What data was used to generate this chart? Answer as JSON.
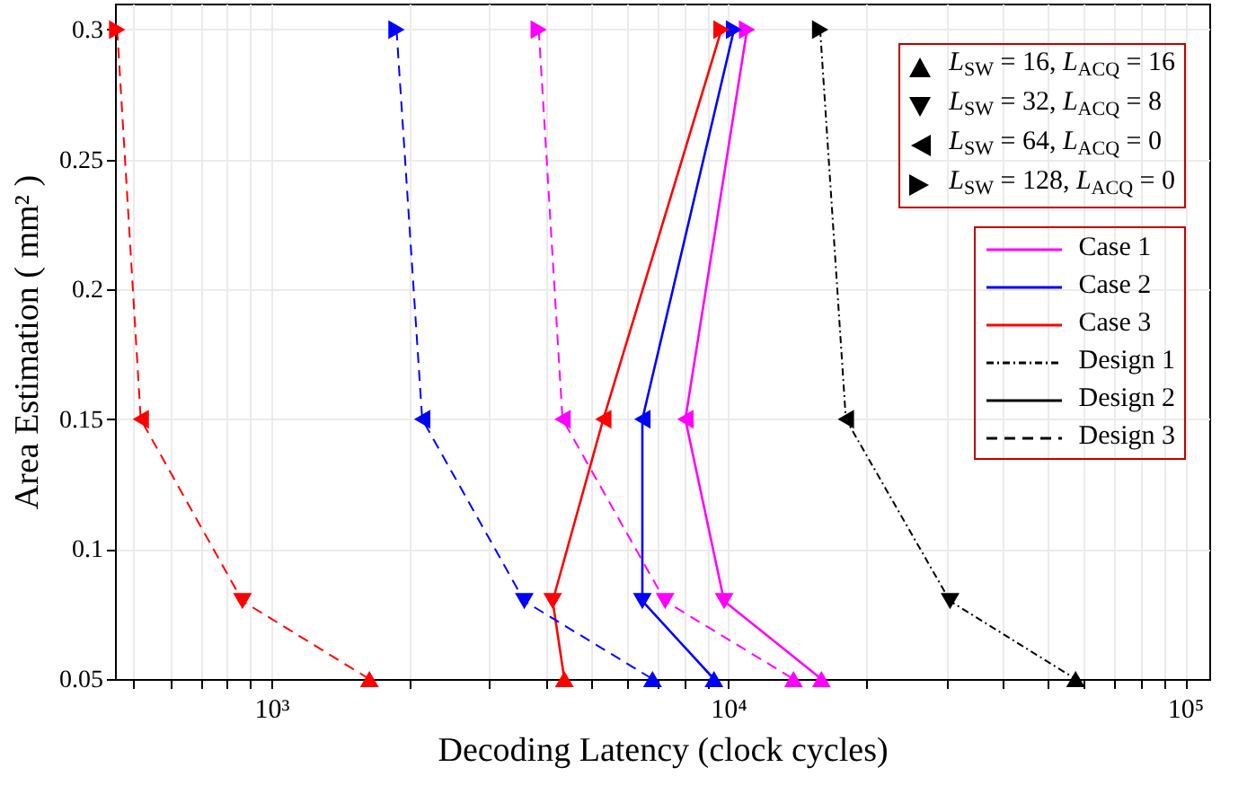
{
  "chart_data": {
    "type": "line",
    "xlabel": "Decoding Latency (clock cycles)",
    "ylabel": "Area Estimation ( mm² )",
    "log": "x",
    "grid": true,
    "legend": "top right",
    "xlim": [
      455,
      113000
    ],
    "xticks": [
      {
        "value": 500,
        "label": null
      },
      {
        "value": 600,
        "label": null
      },
      {
        "value": 700,
        "label": null
      },
      {
        "value": 800,
        "label": null
      },
      {
        "value": 900,
        "label": null
      },
      {
        "value": 1000,
        "label": "10³"
      },
      {
        "value": 2000,
        "label": null
      },
      {
        "value": 3000,
        "label": null
      },
      {
        "value": 4000,
        "label": null
      },
      {
        "value": 5000,
        "label": null
      },
      {
        "value": 6000,
        "label": null
      },
      {
        "value": 7000,
        "label": null
      },
      {
        "value": 8000,
        "label": null
      },
      {
        "value": 9000,
        "label": null
      },
      {
        "value": 10000,
        "label": "10⁴"
      },
      {
        "value": 20000,
        "label": null
      },
      {
        "value": 30000,
        "label": null
      },
      {
        "value": 40000,
        "label": null
      },
      {
        "value": 50000,
        "label": null
      },
      {
        "value": 60000,
        "label": null
      },
      {
        "value": 70000,
        "label": null
      },
      {
        "value": 80000,
        "label": null
      },
      {
        "value": 90000,
        "label": null
      },
      {
        "value": 100000,
        "label": "10⁵"
      }
    ],
    "ylim": [
      0.05,
      0.31
    ],
    "yticks": [
      0.05,
      0.1,
      0.15,
      0.2,
      0.25,
      0.3
    ],
    "series": [
      {
        "color": "#000000",
        "line_style": "dashdot",
        "marker": "none",
        "x": [
          15900,
          18100,
          30600,
          57600
        ],
        "values": [
          0.3,
          0.15,
          0.08,
          0.05
        ]
      },
      {
        "color": "#ff00ff",
        "line_style": "solid",
        "marker": "none",
        "x": [
          11000,
          8060,
          9800,
          16000
        ],
        "values": [
          0.3,
          0.15,
          0.08,
          0.05
        ]
      },
      {
        "color": "#0000ff",
        "line_style": "solid",
        "marker": "none",
        "x": [
          10300,
          6490,
          6490,
          9310
        ],
        "values": [
          0.3,
          0.15,
          0.08,
          0.05
        ]
      },
      {
        "color": "#ff0000",
        "line_style": "solid",
        "marker": "none",
        "x": [
          9670,
          5330,
          4130,
          4380
        ],
        "values": [
          0.3,
          0.15,
          0.08,
          0.05
        ]
      },
      {
        "color": "#ff00ff",
        "line_style": "dashed",
        "marker": "none",
        "x": [
          3850,
          4340,
          7280,
          13900
        ],
        "values": [
          0.3,
          0.15,
          0.08,
          0.05
        ]
      },
      {
        "color": "#0000ff",
        "line_style": "dashed",
        "marker": "none",
        "x": [
          1880,
          2140,
          3580,
          6830
        ],
        "values": [
          0.3,
          0.15,
          0.08,
          0.05
        ]
      },
      {
        "color": "#ff0000",
        "line_style": "dashed",
        "marker": "none",
        "x": [
          460,
          518,
          865,
          1640
        ],
        "values": [
          0.3,
          0.15,
          0.08,
          0.05
        ]
      },
      {
        "type": "scatter",
        "name": "L$_{SW}$ = 16,  L$_{ACQ}$ = 16",
        "color": "#000000",
        "marker": "triangle-up",
        "x": [
          57600,
          16000,
          9310,
          4380,
          13900,
          6830,
          1640
        ],
        "values": [
          0.05,
          0.05,
          0.05,
          0.05,
          0.05,
          0.05,
          0.05
        ],
        "colors": [
          "#000000",
          "#ff00ff",
          "#0000ff",
          "#ff0000",
          "#ff00ff",
          "#0000ff",
          "#ff0000"
        ]
      },
      {
        "type": "scatter",
        "name": "L$_{SW}$ = 32,  L$_{ACQ}$ = 8",
        "color": "#000000",
        "marker": "triangle-down",
        "x": [
          30600,
          9800,
          6490,
          4130,
          7280,
          3580,
          865
        ],
        "values": [
          0.08,
          0.08,
          0.08,
          0.08,
          0.08,
          0.08,
          0.08
        ],
        "colors": [
          "#000000",
          "#ff00ff",
          "#0000ff",
          "#ff0000",
          "#ff00ff",
          "#0000ff",
          "#ff0000"
        ]
      },
      {
        "type": "scatter",
        "name": "L$_{SW}$ = 64,  L$_{ACQ}$ = 0",
        "color": "#000000",
        "marker": "triangle-left",
        "x": [
          18100,
          8060,
          6490,
          5330,
          4340,
          2140,
          518
        ],
        "values": [
          0.15,
          0.15,
          0.15,
          0.15,
          0.15,
          0.15,
          0.15
        ],
        "colors": [
          "#000000",
          "#ff00ff",
          "#0000ff",
          "#ff0000",
          "#ff00ff",
          "#0000ff",
          "#ff0000"
        ]
      },
      {
        "type": "scatter",
        "name": "L$_{SW}$ = 128, L$_{ACQ}$ = 0",
        "color": "#000000",
        "marker": "triangle-right",
        "x": [
          15900,
          11000,
          10300,
          9670,
          3850,
          1880,
          460
        ],
        "values": [
          0.3,
          0.3,
          0.3,
          0.3,
          0.3,
          0.3,
          0.3
        ],
        "colors": [
          "#000000",
          "#ff00ff",
          "#0000ff",
          "#ff0000",
          "#ff00ff",
          "#0000ff",
          "#ff0000"
        ]
      },
      {
        "name": "Case 1",
        "color": "#ff00ff",
        "line_style": "solid"
      },
      {
        "name": "Case 2",
        "color": "#0000ff",
        "line_style": "solid"
      },
      {
        "name": "Case 3",
        "color": "#ff0000",
        "line_style": "solid"
      },
      {
        "name": "Design 1",
        "color": "#000000",
        "line_style": "dashdot"
      },
      {
        "name": "Design 2",
        "color": "#000000",
        "line_style": "solid"
      },
      {
        "name": "Design 3",
        "color": "#000000",
        "line_style": "dashed"
      }
    ]
  }
}
